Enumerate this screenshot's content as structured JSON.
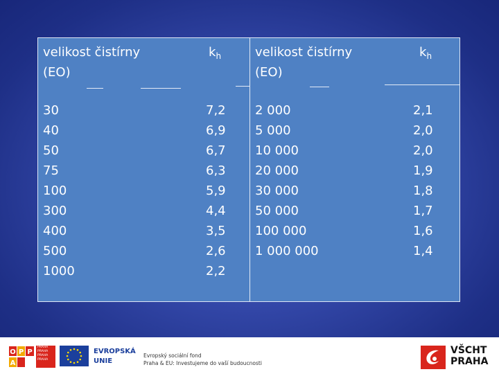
{
  "table": {
    "left": {
      "header_label": "velikost čistírny\n(EO)",
      "kh_main": "k",
      "kh_sub": "h",
      "sizes": "30\n40\n50\n75\n100\n300\n400\n500\n1000",
      "kh_values": "7,2\n6,9\n6,7\n6,3\n5,9\n4,4\n3,5\n2,6\n2,2"
    },
    "right": {
      "header_label": "velikost čistírny\n(EO)",
      "kh_main": "k",
      "kh_sub": "h",
      "sizes": "2 000\n5 000\n10 000\n20 000\n30 000\n50 000\n100 000\n1 000 000",
      "kh_values": "2,1\n2,0\n2,0\n1,9\n1,8\n1,7\n1,6\n1,4"
    }
  },
  "footer": {
    "opp_letters": [
      "O",
      "P",
      "P",
      "A"
    ],
    "opp_praha": [
      "PRAHA",
      "PRAHA",
      "PRAHA",
      "PRAHA"
    ],
    "eu_line1": "EVROPSKÁ",
    "eu_line2": "UNIE",
    "esf_line1": "Evropský sociální fond",
    "esf_line2": "Praha & EU: Investujeme do vaší budoucnosti",
    "vscht_line1": "VŠCHT",
    "vscht_line2": "PRAHA"
  },
  "colors": {
    "table_fill": "#4f81c4",
    "accent_red": "#d9251c",
    "eu_blue": "#1b3f9c"
  }
}
